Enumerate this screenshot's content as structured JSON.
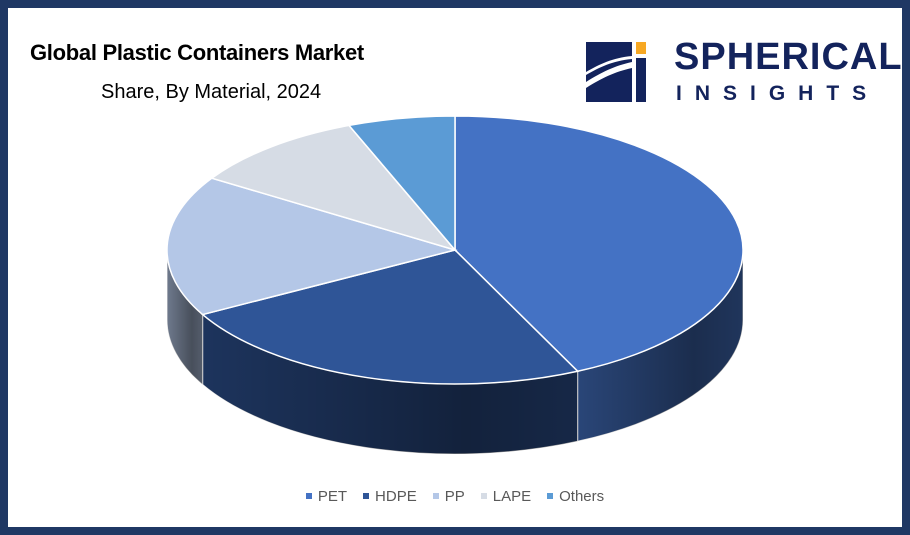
{
  "header": {
    "title": "Global Plastic Containers Market",
    "subtitle": "Share, By Material, 2024"
  },
  "logo": {
    "name": "SPHERICAL",
    "tagline": "INSIGHTS",
    "colors": {
      "navy": "#13235c",
      "accent": "#f7a823"
    }
  },
  "chart_data": {
    "type": "pie",
    "title": "Global Plastic Containers Market",
    "subtitle": "Share, By Material, 2024",
    "style": "3d",
    "legend_position": "bottom",
    "unit": "%",
    "slices": [
      {
        "label": "PET",
        "value": 43,
        "color": "#4472c4"
      },
      {
        "label": "HDPE",
        "value": 24,
        "color": "#2f5597"
      },
      {
        "label": "PP",
        "value": 17,
        "color": "#b4c7e7"
      },
      {
        "label": "LAPE",
        "value": 10,
        "color": "#d6dce5"
      },
      {
        "label": "Others",
        "value": 6,
        "color": "#5b9bd5"
      }
    ]
  }
}
